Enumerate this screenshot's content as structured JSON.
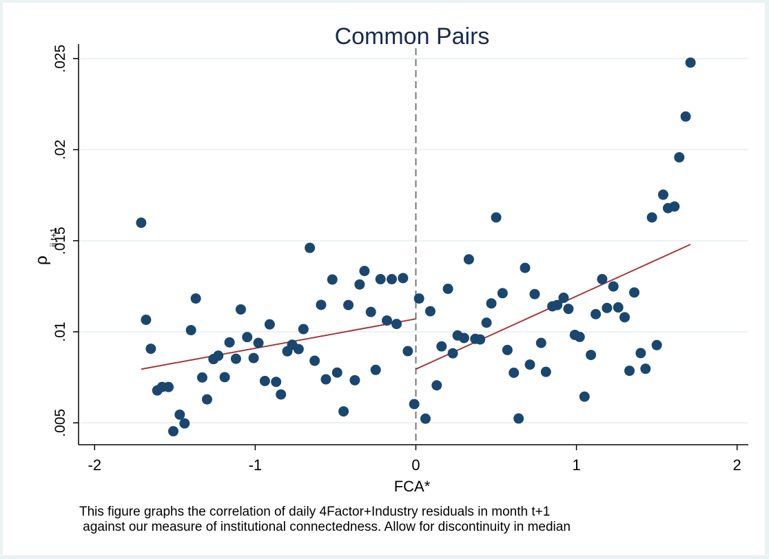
{
  "chart_data": {
    "type": "scatter",
    "title": "Common Pairs",
    "xlabel": "FCA*",
    "ylabel_main": "ρ",
    "ylabel_sub": "ij,t+1",
    "xlim": [
      -2.1,
      2.07
    ],
    "ylim": [
      0.0038,
      0.0258
    ],
    "xticks": [
      -2,
      -1,
      0,
      1,
      2
    ],
    "xtick_labels": [
      "-2",
      "-1",
      "0",
      "1",
      "2"
    ],
    "yticks": [
      0.005,
      0.01,
      0.015,
      0.02,
      0.025
    ],
    "ytick_labels": [
      ".005",
      ".01",
      ".015",
      ".02",
      ".025"
    ],
    "grid": true,
    "cutoff_x": 0,
    "series": [
      {
        "marker": "circle",
        "color": "#1a476f",
        "points": [
          [
            -1.71,
            0.01599
          ],
          [
            -1.68,
            0.01066
          ],
          [
            -1.65,
            0.00907
          ],
          [
            -1.61,
            0.00678
          ],
          [
            -1.58,
            0.00697
          ],
          [
            -1.54,
            0.00697
          ],
          [
            -1.51,
            0.00454
          ],
          [
            -1.47,
            0.00545
          ],
          [
            -1.44,
            0.00497
          ],
          [
            -1.4,
            0.01009
          ],
          [
            -1.37,
            0.01183
          ],
          [
            -1.33,
            0.00749
          ],
          [
            -1.3,
            0.00629
          ],
          [
            -1.26,
            0.0085
          ],
          [
            -1.23,
            0.00869
          ],
          [
            -1.19,
            0.00751
          ],
          [
            -1.16,
            0.00942
          ],
          [
            -1.12,
            0.00852
          ],
          [
            -1.09,
            0.01123
          ],
          [
            -1.05,
            0.00971
          ],
          [
            -1.01,
            0.00856
          ],
          [
            -0.98,
            0.00939
          ],
          [
            -0.94,
            0.0073
          ],
          [
            -0.91,
            0.01041
          ],
          [
            -0.87,
            0.00725
          ],
          [
            -0.84,
            0.00656
          ],
          [
            -0.8,
            0.00893
          ],
          [
            -0.77,
            0.00929
          ],
          [
            -0.73,
            0.00905
          ],
          [
            -0.7,
            0.01015
          ],
          [
            -0.66,
            0.01461
          ],
          [
            -0.63,
            0.00841
          ],
          [
            -0.59,
            0.01148
          ],
          [
            -0.56,
            0.00739
          ],
          [
            -0.52,
            0.01287
          ],
          [
            -0.49,
            0.00776
          ],
          [
            -0.45,
            0.00563
          ],
          [
            -0.42,
            0.01147
          ],
          [
            -0.38,
            0.00734
          ],
          [
            -0.35,
            0.0126
          ],
          [
            -0.32,
            0.01334
          ],
          [
            -0.28,
            0.01109
          ],
          [
            -0.25,
            0.00791
          ],
          [
            -0.22,
            0.01289
          ],
          [
            -0.18,
            0.01062
          ],
          [
            -0.15,
            0.01289
          ],
          [
            -0.12,
            0.01043
          ],
          [
            -0.08,
            0.01295
          ],
          [
            -0.05,
            0.00894
          ],
          [
            -0.01,
            0.00603
          ],
          [
            0.02,
            0.01183
          ],
          [
            0.06,
            0.00523
          ],
          [
            0.09,
            0.01113
          ],
          [
            0.13,
            0.00706
          ],
          [
            0.16,
            0.0092
          ],
          [
            0.2,
            0.01236
          ],
          [
            0.23,
            0.00882
          ],
          [
            0.26,
            0.0098
          ],
          [
            0.3,
            0.00966
          ],
          [
            0.33,
            0.01398
          ],
          [
            0.37,
            0.00961
          ],
          [
            0.4,
            0.00958
          ],
          [
            0.44,
            0.0105
          ],
          [
            0.47,
            0.01156
          ],
          [
            0.5,
            0.01628
          ],
          [
            0.54,
            0.01212
          ],
          [
            0.57,
            0.009
          ],
          [
            0.61,
            0.00775
          ],
          [
            0.64,
            0.00524
          ],
          [
            0.68,
            0.01351
          ],
          [
            0.71,
            0.0082
          ],
          [
            0.74,
            0.01207
          ],
          [
            0.78,
            0.00939
          ],
          [
            0.81,
            0.0078
          ],
          [
            0.85,
            0.0114
          ],
          [
            0.88,
            0.01147
          ],
          [
            0.92,
            0.01187
          ],
          [
            0.95,
            0.01126
          ],
          [
            0.99,
            0.00983
          ],
          [
            1.02,
            0.00972
          ],
          [
            1.05,
            0.00644
          ],
          [
            1.09,
            0.00873
          ],
          [
            1.12,
            0.01097
          ],
          [
            1.16,
            0.01289
          ],
          [
            1.19,
            0.01131
          ],
          [
            1.23,
            0.01249
          ],
          [
            1.26,
            0.01134
          ],
          [
            1.3,
            0.0108
          ],
          [
            1.33,
            0.00786
          ],
          [
            1.36,
            0.01216
          ],
          [
            1.4,
            0.00883
          ],
          [
            1.43,
            0.00797
          ],
          [
            1.47,
            0.01628
          ],
          [
            1.5,
            0.00927
          ],
          [
            1.54,
            0.01753
          ],
          [
            1.57,
            0.01679
          ],
          [
            1.61,
            0.01688
          ],
          [
            1.64,
            0.01958
          ],
          [
            1.68,
            0.02182
          ],
          [
            1.71,
            0.02478
          ]
        ]
      }
    ],
    "fit_lines": [
      {
        "color": "#a3383a",
        "x": [
          -1.71,
          0.0
        ],
        "y": [
          0.00795,
          0.01071
        ]
      },
      {
        "color": "#a3383a",
        "x": [
          0.0,
          1.71
        ],
        "y": [
          0.00795,
          0.0148
        ]
      }
    ]
  },
  "footnote": {
    "line1": "This figure graphs the correlation of daily 4Factor+Industry residuals in month t+1",
    "line2": " against our measure of institutional connectedness. Allow for discontinuity in median"
  }
}
